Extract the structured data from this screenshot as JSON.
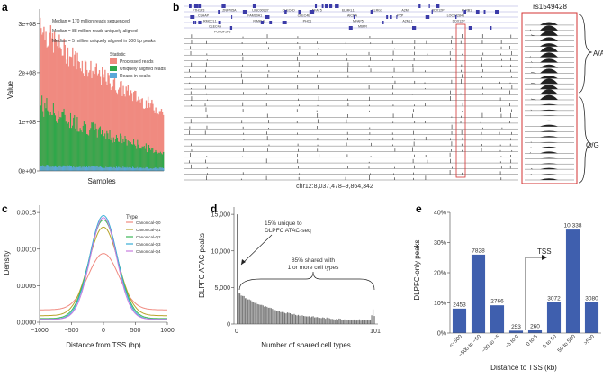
{
  "colors": {
    "processed": "#f08a80",
    "aligned": "#2ea84a",
    "peaks": "#5aa8d8",
    "bar": "#3f5fae",
    "track": "#222222",
    "highlight": "#d33333"
  },
  "panel_a": {
    "label": "a",
    "notes": [
      "Median = 170 million reads sequenced",
      "Median = 88 million reads uniquely aligned",
      "Median = 5 million uniquely aligned in 300 bp peaks"
    ],
    "chart_data": {
      "type": "area",
      "ylabel": "Value",
      "xlabel": "Samples",
      "yticks": [
        "0e+00",
        "1e+08",
        "2e+08",
        "3e+08"
      ],
      "ylim": [
        0,
        330000000
      ],
      "legend_title": "Statistic",
      "series": [
        {
          "name": "Processed reads",
          "start": 310000000,
          "end": 125000000
        },
        {
          "name": "Uniquely aligned reads",
          "start": 150000000,
          "end": 40000000
        },
        {
          "name": "Reads in peaks",
          "start": 11000000,
          "end": 6000000
        }
      ]
    }
  },
  "panel_b": {
    "label": "b",
    "genes_row1": [
      "FTH1P3",
      "ZNF705A",
      "LINC00937",
      "CLEC4D",
      "NFAT5",
      "ELMKL1",
      "KLRG1",
      "A2M",
      "DDX12P",
      "KLRB1"
    ],
    "genes_row2": [
      "CLHAP",
      "FAM90A1",
      "CLEC4E",
      "AICDA",
      "PZP",
      "LOC642846"
    ],
    "genes_row3": [
      "RMCCL1",
      "RIMKLB",
      "PHC1",
      "MFAP5",
      "A2ML1",
      "DDX12P"
    ],
    "genes_row4": [
      "CLEC4A",
      "M6PR"
    ],
    "genes_row5": [
      "POU5F1P3"
    ],
    "coord": "chr12:8,037,478–9,864,342",
    "snp": "rs1549428",
    "genotype_top": "A/A",
    "genotype_bottom": "G/G"
  },
  "panel_c": {
    "label": "c",
    "chart_data": {
      "type": "line",
      "ylabel": "Density",
      "xlabel": "Distance from TSS (bp)",
      "xticks": [
        "−1000",
        "−500",
        "0",
        "500",
        "1000"
      ],
      "yticks": [
        "0.0000",
        "0.0005",
        "0.0010",
        "0.0015"
      ],
      "ylim": [
        0,
        0.0016
      ],
      "legend_title": "Type",
      "series": [
        {
          "name": "Canonical-Q0",
          "color": "#f08a80",
          "peak": 0.00094,
          "tail": 0.00017
        },
        {
          "name": "Canonical-Q1",
          "color": "#b8a42a",
          "peak": 0.0013,
          "tail": 9e-05
        },
        {
          "name": "Canonical-Q2",
          "color": "#3db856",
          "peak": 0.0014,
          "tail": 5e-05
        },
        {
          "name": "Canonical-Q3",
          "color": "#3aaed6",
          "peak": 0.00146,
          "tail": 4e-05
        },
        {
          "name": "Canonical-Q4",
          "color": "#c77de0",
          "peak": 0.00143,
          "tail": 4e-05
        }
      ]
    }
  },
  "panel_d": {
    "label": "d",
    "annot1": [
      "15% unique to",
      "DLPFC ATAC-seq"
    ],
    "annot2": [
      "85% shared with",
      "1 or more cell types"
    ],
    "chart_data": {
      "type": "bar",
      "ylabel": "DLPFC ATAC peaks",
      "xlabel": "Number of shared cell types",
      "xticks": [
        "0",
        "101"
      ],
      "yticks": [
        "0",
        "5,000",
        "10,000",
        "15,000"
      ],
      "ylim": [
        0,
        16000
      ],
      "first_bar": 15000,
      "decay": {
        "start": 4000,
        "end": 350
      },
      "last_bars": [
        1200,
        2000,
        1100
      ]
    }
  },
  "panel_e": {
    "label": "e",
    "tss_label": "TSS",
    "chart_data": {
      "type": "bar",
      "ylabel": "DLPFC-only peaks",
      "xlabel": "Distance to TSS (kb)",
      "yticks": [
        "0%",
        "10%",
        "20%",
        "30%",
        "40%"
      ],
      "ylim": [
        0,
        40
      ],
      "categories": [
        "<−500",
        "−500 to −50",
        "−50 to −5",
        "−5 to 0",
        "0 to 5",
        "5 to 50",
        "50 to 500",
        ">500"
      ],
      "labels": [
        "2453",
        "7828",
        "2766",
        "253",
        "260",
        "3072",
        "10,338",
        "3080"
      ],
      "values": [
        8.1,
        26.0,
        9.2,
        0.8,
        0.9,
        10.2,
        34.3,
        10.2
      ]
    }
  }
}
